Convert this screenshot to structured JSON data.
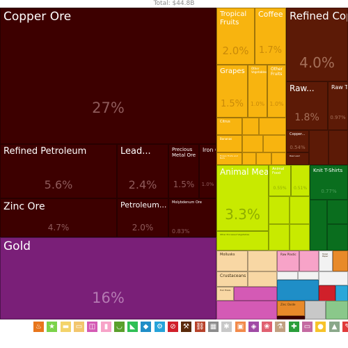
{
  "chart_data": {
    "type": "treemap",
    "total_label": "Total: $44.8B",
    "title": "",
    "items": [
      {
        "label": "Copper Ore",
        "percent": "27%",
        "color": "#3d0000"
      },
      {
        "label": "Refined Petroleum",
        "percent": "5.6%",
        "color": "#3d0000"
      },
      {
        "label": "Lead...",
        "percent": "2.4%",
        "color": "#3d0000"
      },
      {
        "label": "Precious Metal Ore",
        "percent": "1.5%",
        "color": "#3d0000"
      },
      {
        "label": "Iron Ore",
        "percent": "1.0%",
        "color": "#3d0000"
      },
      {
        "label": "Zinc Ore",
        "percent": "4.7%",
        "color": "#3d0000"
      },
      {
        "label": "Petroleum...",
        "percent": "2.0%",
        "color": "#3d0000"
      },
      {
        "label": "Molybdenum Ore",
        "percent": "0.83%",
        "color": "#3d0000"
      },
      {
        "label": "Gold",
        "percent": "16%",
        "color": "#7a1f78"
      },
      {
        "label": "Tropical Fruits",
        "percent": "2.0%",
        "color": "#f8b40f"
      },
      {
        "label": "Coffee",
        "percent": "1.7%",
        "color": "#f8b40f"
      },
      {
        "label": "Grapes",
        "percent": "1.5%",
        "color": "#f8b40f"
      },
      {
        "label": "Other Vegetables",
        "percent": "1.0%",
        "color": "#f8b40f"
      },
      {
        "label": "Other Fruits",
        "percent": "1.0%",
        "color": "#f8b40f"
      },
      {
        "label": "Citrus",
        "percent": "",
        "color": "#f8b40f"
      },
      {
        "label": "Bananas",
        "percent": "",
        "color": "#f8b40f"
      },
      {
        "label": "Frozen Fruits and Nuts",
        "percent": "",
        "color": "#f8b40f"
      },
      {
        "label": "Refined Copper",
        "percent": "4.0%",
        "color": "#5c1a06"
      },
      {
        "label": "Raw...",
        "percent": "1.8%",
        "color": "#5c1a06"
      },
      {
        "label": "Raw Tin",
        "percent": "0.97%",
        "color": "#5c1a06"
      },
      {
        "label": "Copper...",
        "percent": "0.54%",
        "color": "#5c1a06"
      },
      {
        "label": "Raw Lead",
        "percent": "",
        "color": "#5c1a06"
      },
      {
        "label": "Animal Meal and Pellets",
        "percent": "3.3%",
        "color": "#c8ea00"
      },
      {
        "label": "Animal Food",
        "percent": "0.55%",
        "color": "#c8ea00"
      },
      {
        "label": "",
        "percent": "0.51%",
        "color": "#c8ea00"
      },
      {
        "label": "Other Processed Vegetables",
        "percent": "",
        "color": "#c8ea00"
      },
      {
        "label": "Knit T-Shirts",
        "percent": "0.77%",
        "color": "#0a6e1e"
      },
      {
        "label": "Mollusks",
        "percent": "",
        "color": "#f8d7a4"
      },
      {
        "label": "Crustaceans",
        "percent": "",
        "color": "#f8d7a4"
      },
      {
        "label": "Raw Plastic",
        "percent": "",
        "color": "#f7a3c8"
      },
      {
        "label": "Toilet Paper",
        "percent": "",
        "color": "#f2f2f2"
      },
      {
        "label": "Fish Fillets",
        "percent": "",
        "color": "#f8d7a4"
      },
      {
        "label": "Zinc Oxide",
        "percent": "",
        "color": "#e88a2a"
      }
    ],
    "legend": [
      {
        "name": "fire-icon",
        "color": "#e8761c",
        "glyph": "♨"
      },
      {
        "name": "star-icon",
        "color": "#7bd34a",
        "glyph": "★"
      },
      {
        "name": "box-icon",
        "color": "#f3d36a",
        "glyph": "▬"
      },
      {
        "name": "tag-icon",
        "color": "#f2c66d",
        "glyph": "▭"
      },
      {
        "name": "frame-icon",
        "color": "#d45ab5",
        "glyph": "◫"
      },
      {
        "name": "drop-icon",
        "color": "#f7a3c8",
        "glyph": "▮"
      },
      {
        "name": "bowl-icon",
        "color": "#5aa02c",
        "glyph": "◡"
      },
      {
        "name": "shoe-icon",
        "color": "#2fbf55",
        "glyph": "◣"
      },
      {
        "name": "gem-icon",
        "color": "#1f8ec7",
        "glyph": "◆"
      },
      {
        "name": "cells-icon",
        "color": "#26a3d9",
        "glyph": "⚙"
      },
      {
        "name": "no-icon",
        "color": "#d0202a",
        "glyph": "⊘"
      },
      {
        "name": "pick-icon",
        "color": "#5a2a0a",
        "glyph": "⚒"
      },
      {
        "name": "chain-icon",
        "color": "#b7422a",
        "glyph": "⛓"
      },
      {
        "name": "dice-icon",
        "color": "#8c8c8c",
        "glyph": "▦"
      },
      {
        "name": "gear-icon",
        "color": "#c8c8c8",
        "glyph": "✱"
      },
      {
        "name": "box2-icon",
        "color": "#f28a4a",
        "glyph": "▣"
      },
      {
        "name": "diamond-icon",
        "color": "#a04aa5",
        "glyph": "◈"
      },
      {
        "name": "leaf-icon",
        "color": "#e06070",
        "glyph": "❀"
      },
      {
        "name": "flask-icon",
        "color": "#c0a080",
        "glyph": "⚗"
      },
      {
        "name": "shirt-icon",
        "color": "#2a9e3a",
        "glyph": "✚"
      },
      {
        "name": "tray-icon",
        "color": "#c46aa2",
        "glyph": "▭"
      },
      {
        "name": "egg-icon",
        "color": "#f7c32a",
        "glyph": "●"
      },
      {
        "name": "lamp-icon",
        "color": "#8aa88a",
        "glyph": "▲"
      },
      {
        "name": "train-icon",
        "color": "#e03a3a",
        "glyph": "✎"
      }
    ]
  }
}
